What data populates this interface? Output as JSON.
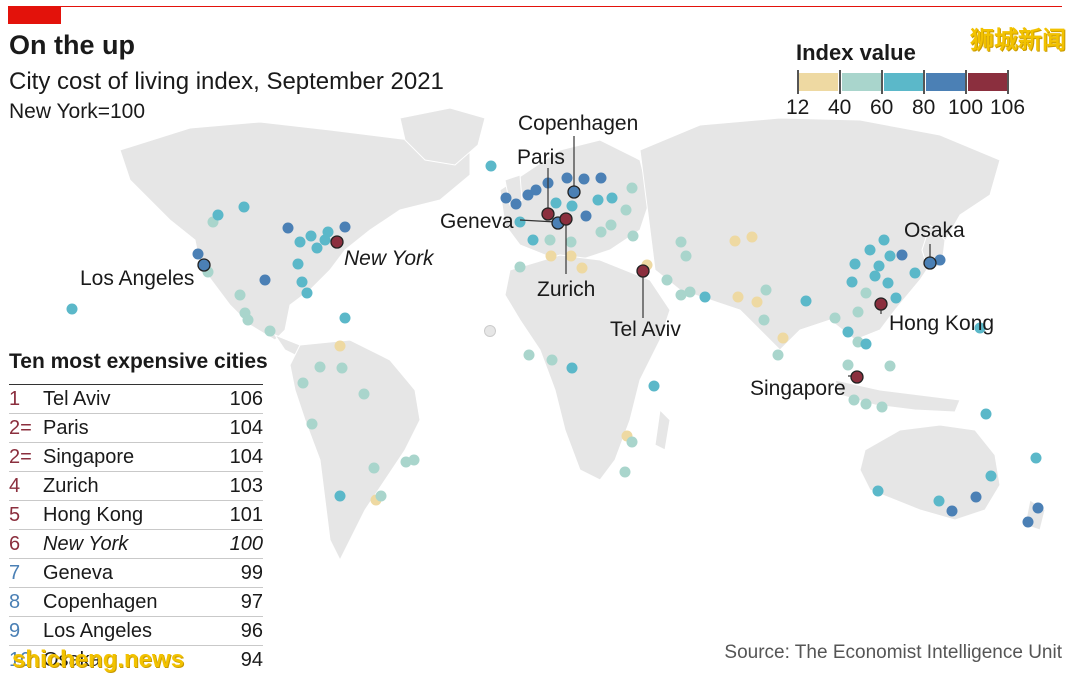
{
  "header": {
    "title": "On the up",
    "subtitle": "City cost of living index, September 2021",
    "note": "New York=100"
  },
  "watermark_top": "狮城新闻",
  "watermark_bottom": "shicheng.news",
  "legend": {
    "title": "Index value",
    "bins": [
      {
        "from": 12,
        "to": 40,
        "color": "#eed9a2"
      },
      {
        "from": 40,
        "to": 60,
        "color": "#a9d5cc"
      },
      {
        "from": 60,
        "to": 80,
        "color": "#5bb8c9"
      },
      {
        "from": 80,
        "to": 100,
        "color": "#4b80b5"
      },
      {
        "from": 100,
        "to": 106,
        "color": "#8b2f3e"
      }
    ],
    "tick_labels": [
      "12",
      "40",
      "60",
      "80",
      "100",
      "106"
    ]
  },
  "map_labels": [
    {
      "name": "Copenhagen",
      "italic": false
    },
    {
      "name": "Paris",
      "italic": false
    },
    {
      "name": "Geneva",
      "italic": false
    },
    {
      "name": "Zurich",
      "italic": false
    },
    {
      "name": "Los Angeles",
      "italic": false
    },
    {
      "name": "New York",
      "italic": true
    },
    {
      "name": "Tel Aviv",
      "italic": false
    },
    {
      "name": "Osaka",
      "italic": false
    },
    {
      "name": "Hong Kong",
      "italic": false
    },
    {
      "name": "Singapore",
      "italic": false
    }
  ],
  "table": {
    "title": "Ten most expensive cities",
    "rows": [
      {
        "rank": "1",
        "city": "Tel Aviv",
        "value": "106",
        "color": "#8b2f3e",
        "italic": false
      },
      {
        "rank": "2=",
        "city": "Paris",
        "value": "104",
        "color": "#8b2f3e",
        "italic": false
      },
      {
        "rank": "2=",
        "city": "Singapore",
        "value": "104",
        "color": "#8b2f3e",
        "italic": false
      },
      {
        "rank": "4",
        "city": "Zurich",
        "value": "103",
        "color": "#8b2f3e",
        "italic": false
      },
      {
        "rank": "5",
        "city": "Hong Kong",
        "value": "101",
        "color": "#8b2f3e",
        "italic": false
      },
      {
        "rank": "6",
        "city": "New York",
        "value": "100",
        "color": "#8b2f3e",
        "italic": true
      },
      {
        "rank": "7",
        "city": "Geneva",
        "value": "99",
        "color": "#4b80b5",
        "italic": false
      },
      {
        "rank": "8",
        "city": "Copenhagen",
        "value": "97",
        "color": "#4b80b5",
        "italic": false
      },
      {
        "rank": "9",
        "city": "Los Angeles",
        "value": "96",
        "color": "#4b80b5",
        "italic": false
      },
      {
        "rank": "10",
        "city": "Osaka",
        "value": "94",
        "color": "#4b80b5",
        "italic": false
      }
    ]
  },
  "source": "Source: The Economist Intelligence Unit",
  "colors": {
    "accent": "#e3120b",
    "land": "#e6e6e6",
    "low": "#eed9a2",
    "mid_low": "#a9d5cc",
    "mid": "#5bb8c9",
    "high": "#4b80b5",
    "top": "#8b2f3e"
  }
}
